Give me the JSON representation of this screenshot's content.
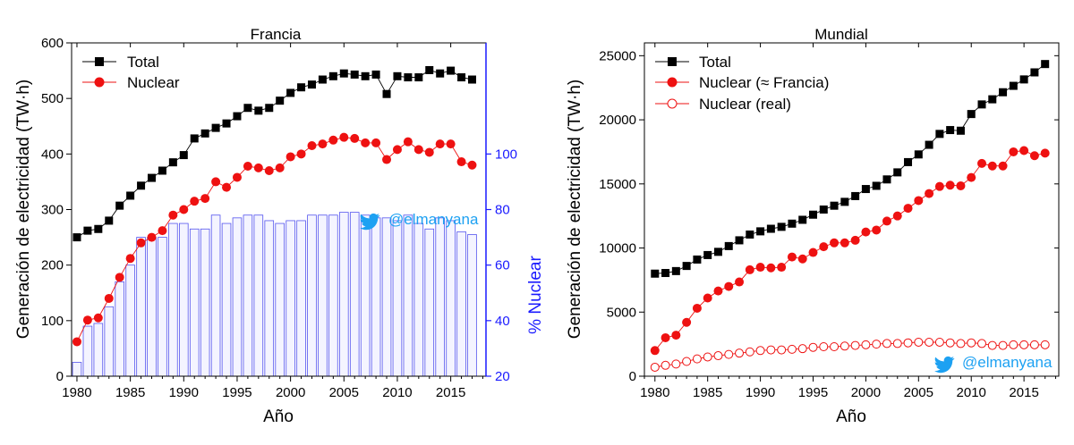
{
  "colors": {
    "total": "#000000",
    "nuclear": "#ee1111",
    "nuclear_line": "#ee1111",
    "bars_stroke": "#5555ee",
    "bars_fill": "#f4f4ff",
    "right_axis": "#1a1aff",
    "twitter": "#1da1f2"
  },
  "icons": {
    "twitter": "twitter-bird-icon"
  },
  "chart_data": [
    {
      "type": "line",
      "title": "Francia",
      "xlabel": "Año",
      "ylabel": "Generación de electricidad (TW·h)",
      "y2label": "% Nuclear",
      "xlim": [
        1979.5,
        2018.3
      ],
      "ylim": [
        0,
        600
      ],
      "y2lim": [
        20,
        140
      ],
      "x_ticks": [
        1980,
        1985,
        1990,
        1995,
        2000,
        2005,
        2010,
        2015
      ],
      "x_tick_labels": [
        "1980",
        "1985",
        "1990",
        "1995",
        "2000",
        "2005",
        "2010",
        "2015"
      ],
      "y_ticks": [
        0,
        100,
        200,
        300,
        400,
        500,
        600
      ],
      "y_tick_labels": [
        "0",
        "100",
        "200",
        "300",
        "400",
        "500",
        "600"
      ],
      "y2_ticks": [
        20,
        40,
        60,
        80,
        100
      ],
      "y2_tick_labels": [
        "20",
        "40",
        "60",
        "80",
        "100"
      ],
      "legend_position": "top-left",
      "watermark": "@elmanyana",
      "x": [
        1980,
        1981,
        1982,
        1983,
        1984,
        1985,
        1986,
        1987,
        1988,
        1989,
        1990,
        1991,
        1992,
        1993,
        1994,
        1995,
        1996,
        1997,
        1998,
        1999,
        2000,
        2001,
        2002,
        2003,
        2004,
        2005,
        2006,
        2007,
        2008,
        2009,
        2010,
        2011,
        2012,
        2013,
        2014,
        2015,
        2016,
        2017
      ],
      "series": [
        {
          "name": "Total",
          "kind": "line",
          "marker": "square",
          "color": "#000000",
          "values": [
            250,
            262,
            265,
            280,
            307,
            325,
            343,
            357,
            370,
            385,
            398,
            428,
            437,
            447,
            455,
            468,
            483,
            478,
            483,
            496,
            510,
            520,
            525,
            534,
            540,
            545,
            543,
            540,
            543,
            508,
            540,
            538,
            538,
            551,
            545,
            550,
            538,
            534
          ]
        },
        {
          "name": "Nuclear",
          "kind": "line",
          "marker": "circle",
          "color": "#ee1111",
          "values": [
            62,
            101,
            105,
            140,
            178,
            212,
            240,
            250,
            262,
            290,
            300,
            315,
            320,
            350,
            340,
            358,
            378,
            375,
            370,
            375,
            395,
            400,
            415,
            418,
            425,
            430,
            428,
            420,
            420,
            390,
            408,
            422,
            408,
            403,
            418,
            418,
            386,
            380
          ]
        },
        {
          "name": "% Nuclear",
          "kind": "bar",
          "axis": "right",
          "values": [
            25,
            38,
            39,
            45,
            54,
            60,
            70,
            70,
            70,
            75,
            75,
            73,
            73,
            78,
            75,
            77,
            78,
            78,
            76,
            75,
            76,
            76,
            78,
            78,
            78,
            79,
            79,
            78,
            77,
            77,
            76,
            78,
            75,
            73,
            77,
            76,
            72,
            71
          ]
        }
      ]
    },
    {
      "type": "line",
      "title": "Mundial",
      "xlabel": "Año",
      "ylabel": "Generación de electricidad (TW·h)",
      "xlim": [
        1979.0,
        2018.3
      ],
      "ylim": [
        0,
        26000
      ],
      "x_ticks": [
        1980,
        1985,
        1990,
        1995,
        2000,
        2005,
        2010,
        2015
      ],
      "x_tick_labels": [
        "1980",
        "1985",
        "1990",
        "1995",
        "2000",
        "2005",
        "2010",
        "2015"
      ],
      "y_ticks": [
        0,
        5000,
        10000,
        15000,
        20000,
        25000
      ],
      "y_tick_labels": [
        "0",
        "5000",
        "10000",
        "15000",
        "20000",
        "25000"
      ],
      "legend_position": "top-left",
      "watermark": "@elmanyana",
      "x": [
        1980,
        1981,
        1982,
        1983,
        1984,
        1985,
        1986,
        1987,
        1988,
        1989,
        1990,
        1991,
        1992,
        1993,
        1994,
        1995,
        1996,
        1997,
        1998,
        1999,
        2000,
        2001,
        2002,
        2003,
        2004,
        2005,
        2006,
        2007,
        2008,
        2009,
        2010,
        2011,
        2012,
        2013,
        2014,
        2015,
        2016,
        2017
      ],
      "series": [
        {
          "name": "Total",
          "kind": "line",
          "marker": "square",
          "color": "#000000",
          "values": [
            8000,
            8050,
            8200,
            8600,
            9100,
            9450,
            9700,
            10150,
            10600,
            11050,
            11300,
            11500,
            11650,
            11900,
            12200,
            12600,
            13000,
            13300,
            13600,
            14050,
            14600,
            14850,
            15350,
            15900,
            16700,
            17300,
            18050,
            18900,
            19200,
            19150,
            20450,
            21200,
            21600,
            22150,
            22650,
            23150,
            23700,
            24350
          ]
        },
        {
          "name": "Nuclear (≈ Francia)",
          "kind": "line",
          "marker": "circle",
          "color": "#ee1111",
          "values": [
            2000,
            3000,
            3200,
            4200,
            5300,
            6100,
            6650,
            7000,
            7350,
            8300,
            8500,
            8450,
            8500,
            9300,
            9150,
            9650,
            10100,
            10400,
            10400,
            10600,
            11250,
            11400,
            12100,
            12500,
            13100,
            13700,
            14250,
            14800,
            14900,
            14850,
            15500,
            16600,
            16400,
            16400,
            17500,
            17600,
            17200,
            17400
          ]
        },
        {
          "name": "Nuclear (real)",
          "kind": "line",
          "marker": "open-circle",
          "color": "#ee1111",
          "values": [
            700,
            850,
            950,
            1150,
            1350,
            1500,
            1600,
            1700,
            1800,
            1900,
            2000,
            2050,
            2050,
            2100,
            2150,
            2250,
            2300,
            2300,
            2350,
            2400,
            2450,
            2500,
            2550,
            2550,
            2600,
            2650,
            2650,
            2650,
            2600,
            2550,
            2600,
            2550,
            2400,
            2400,
            2450,
            2450,
            2450,
            2450
          ]
        }
      ]
    }
  ]
}
